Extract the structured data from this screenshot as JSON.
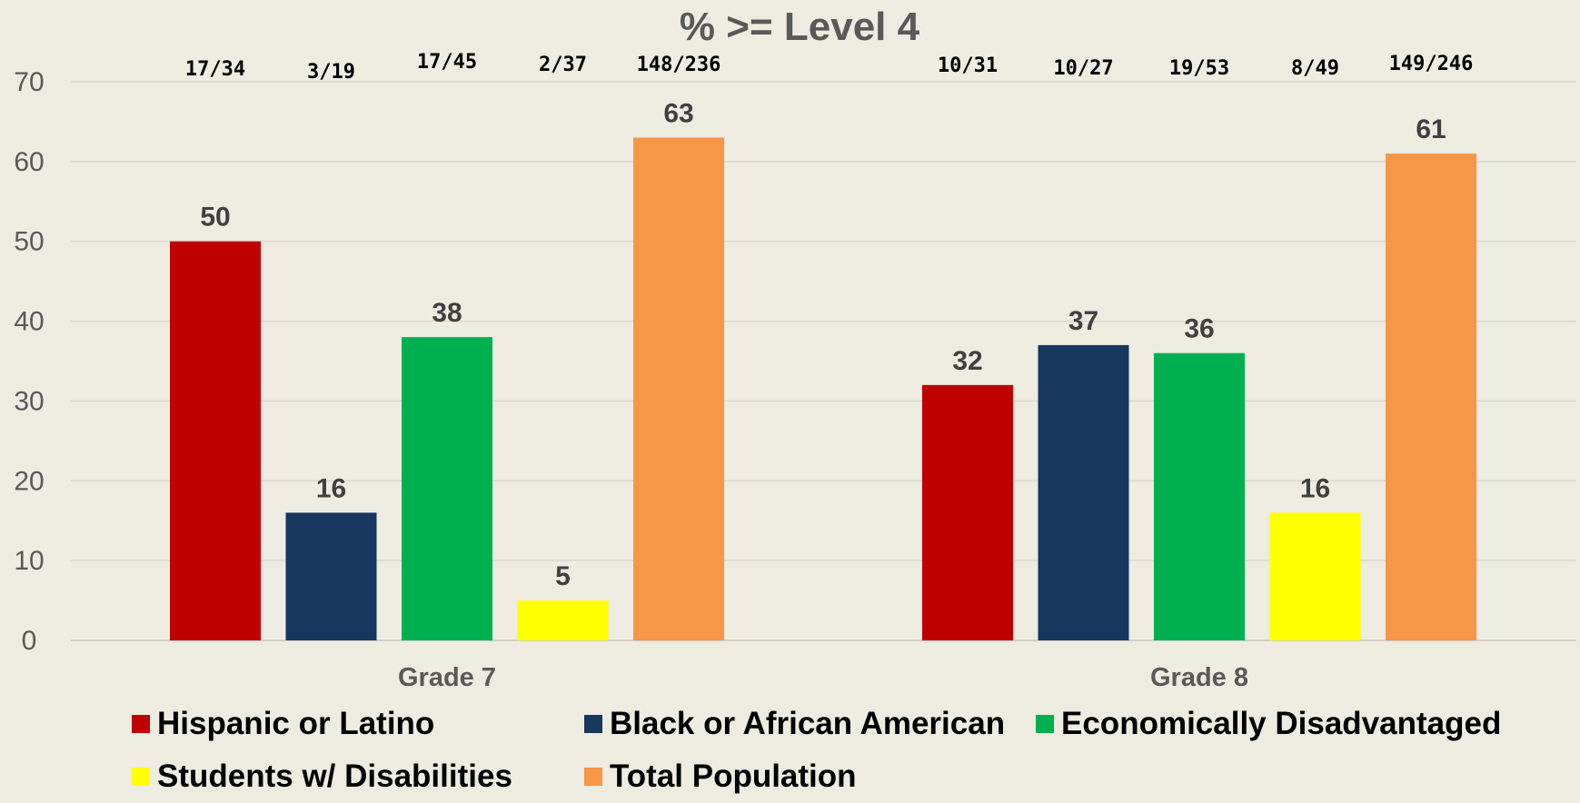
{
  "chart_data": {
    "type": "bar",
    "title": "% >= Level 4",
    "categories": [
      "Grade 7",
      "Grade 8"
    ],
    "ylim": [
      0,
      70
    ],
    "yticks": [
      0,
      10,
      20,
      30,
      40,
      50,
      60,
      70
    ],
    "grid": true,
    "legend_position": "bottom",
    "series": [
      {
        "name": "Hispanic or Latino",
        "color": "#c00000",
        "values": [
          50,
          32
        ],
        "fractions": [
          "17/34",
          "10/31"
        ]
      },
      {
        "name": "Black or African American",
        "color": "#17375e",
        "values": [
          16,
          37
        ],
        "fractions": [
          "3/19",
          "10/27"
        ]
      },
      {
        "name": "Economically Disadvantaged",
        "color": "#00b050",
        "values": [
          38,
          36
        ],
        "fractions": [
          "17/45",
          "19/53"
        ]
      },
      {
        "name": "Students w/ Disabilities",
        "color": "#ffff00",
        "values": [
          5,
          16
        ],
        "fractions": [
          "2/37",
          "8/49"
        ]
      },
      {
        "name": "Total Population",
        "color": "#f79646",
        "values": [
          63,
          61
        ],
        "fractions": [
          "148/236",
          "149/246"
        ]
      }
    ]
  }
}
